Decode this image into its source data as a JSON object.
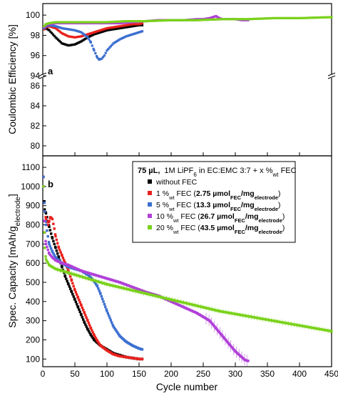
{
  "chart_data": [
    {
      "panel": "a",
      "type": "scatter",
      "ylabel": "Coulombic Efficiency [%]",
      "x_range": [
        0,
        450
      ],
      "y_ranges": [
        [
          94,
          101
        ],
        [
          79,
          87
        ]
      ],
      "y_axis_break": true,
      "y_ticks_upper": [
        "94",
        "96",
        "98",
        "100"
      ],
      "y_ticks_lower": [
        "80",
        "82",
        "84",
        "86"
      ],
      "series": [
        {
          "color": "#000000",
          "x": [
            2,
            5,
            10,
            20,
            30,
            40,
            50,
            60,
            70,
            80,
            90,
            100,
            110,
            120,
            130,
            140,
            150,
            155
          ],
          "y": [
            98.6,
            98.7,
            98.5,
            97.8,
            97.2,
            97.0,
            97.1,
            97.4,
            97.8,
            98.1,
            98.3,
            98.5,
            98.6,
            98.7,
            98.8,
            98.9,
            99.0,
            99.0
          ]
        },
        {
          "color": "#e8201c",
          "x": [
            2,
            5,
            10,
            20,
            30,
            40,
            50,
            60,
            70,
            80,
            90,
            100,
            110,
            120,
            130,
            140,
            150,
            155
          ],
          "y": [
            98.6,
            98.8,
            98.9,
            98.7,
            98.2,
            97.9,
            97.8,
            97.9,
            98.1,
            98.3,
            98.5,
            98.7,
            98.8,
            98.9,
            99.0,
            99.1,
            99.1,
            99.2
          ]
        },
        {
          "color": "#3b6fd0",
          "x": [
            2,
            5,
            10,
            20,
            30,
            40,
            50,
            60,
            70,
            75,
            80,
            85,
            88,
            92,
            96,
            100,
            110,
            120,
            130,
            140,
            150,
            155
          ],
          "y": [
            98.7,
            98.9,
            99.0,
            98.9,
            98.7,
            98.6,
            98.5,
            98.3,
            97.8,
            97.3,
            96.5,
            95.8,
            95.6,
            95.7,
            96.0,
            96.5,
            97.2,
            97.6,
            97.9,
            98.1,
            98.3,
            98.4
          ]
        },
        {
          "color": "#b040d8",
          "x": [
            2,
            5,
            10,
            20,
            40,
            60,
            80,
            100,
            120,
            140,
            160,
            180,
            200,
            220,
            240,
            250,
            260,
            265,
            270,
            275,
            280,
            290,
            300,
            310,
            320
          ],
          "y": [
            98.8,
            99.0,
            99.1,
            99.2,
            99.2,
            99.2,
            99.2,
            99.2,
            99.2,
            99.3,
            99.4,
            99.5,
            99.5,
            99.5,
            99.6,
            99.6,
            99.7,
            99.8,
            99.9,
            99.7,
            99.6,
            99.6,
            99.6,
            99.5,
            99.5
          ]
        },
        {
          "color": "#7ad21c",
          "x": [
            2,
            5,
            10,
            20,
            40,
            60,
            80,
            100,
            130,
            160,
            200,
            240,
            280,
            320,
            360,
            400,
            450
          ],
          "y": [
            98.9,
            99.1,
            99.2,
            99.3,
            99.3,
            99.3,
            99.3,
            99.3,
            99.4,
            99.4,
            99.5,
            99.5,
            99.6,
            99.6,
            99.7,
            99.7,
            99.8
          ]
        }
      ]
    },
    {
      "panel": "b",
      "type": "scatter",
      "xlabel": "Cycle number",
      "ylabel_main": "Spec. Capacity [mAh/g",
      "ylabel_sub": "electrode",
      "ylabel_close": "]",
      "x_range": [
        0,
        450
      ],
      "y_range": [
        60,
        1160
      ],
      "x_ticks": [
        "0",
        "50",
        "100",
        "150",
        "200",
        "250",
        "300",
        "350",
        "400",
        "450"
      ],
      "y_ticks": [
        "100",
        "200",
        "300",
        "400",
        "500",
        "600",
        "700",
        "800",
        "900",
        "1000",
        "1100"
      ],
      "legend": {
        "title": {
          "volume": "75 µL,",
          "salt_prefix": "1M LiPF",
          "salt_sub": "6",
          "solvent": " in EC:EMC 3:7 + x %",
          "wt_sub": "wt",
          "suffix": " FEC"
        },
        "entries": [
          {
            "color": "#000000",
            "label": "without FEC"
          },
          {
            "color": "#e8201c",
            "pct": "1 %",
            "wt": "wt",
            "fec": " FEC (",
            "amount": "2.75 µmol",
            "sub1": "FEC",
            "slash": "/mg",
            "sub2": "electrode",
            "close": ")"
          },
          {
            "color": "#3b6fd0",
            "pct": "5 %",
            "wt": "wt",
            "fec": " FEC (",
            "amount": "13.3 µmol",
            "sub1": "FEC",
            "slash": "/mg",
            "sub2": "electrode",
            "close": ")"
          },
          {
            "color": "#b040d8",
            "pct": "10 %",
            "wt": "wt",
            "fec": " FEC (",
            "amount": "26.7 µmol",
            "sub1": "FEC",
            "slash": "/mg",
            "sub2": "electrode",
            "close": ")"
          },
          {
            "color": "#7ad21c",
            "pct": "20 %",
            "wt": "wt",
            "fec": " FEC (",
            "amount": "43.5 µmol",
            "sub1": "FEC",
            "slash": "/mg",
            "sub2": "electrode",
            "close": ")"
          }
        ]
      },
      "series": [
        {
          "color": "#000000",
          "x": [
            1,
            3,
            5,
            8,
            10,
            15,
            20,
            25,
            30,
            35,
            40,
            45,
            50,
            55,
            60,
            65,
            70,
            75,
            80,
            90,
            100,
            110,
            120,
            130,
            140,
            150,
            155
          ],
          "y": [
            1050,
            880,
            860,
            820,
            790,
            730,
            680,
            630,
            580,
            530,
            490,
            450,
            410,
            370,
            330,
            290,
            255,
            225,
            200,
            170,
            150,
            130,
            120,
            110,
            105,
            100,
            100
          ]
        },
        {
          "color": "#e8201c",
          "x": [
            1,
            3,
            5,
            8,
            10,
            12,
            15,
            18,
            20,
            25,
            30,
            35,
            40,
            45,
            50,
            55,
            60,
            65,
            70,
            75,
            80,
            85,
            90,
            100,
            110,
            120,
            130,
            140,
            150,
            155
          ],
          "y": [
            1050,
            870,
            830,
            800,
            820,
            840,
            830,
            780,
            740,
            680,
            640,
            600,
            560,
            510,
            460,
            420,
            380,
            340,
            300,
            260,
            225,
            195,
            170,
            145,
            125,
            115,
            110,
            105,
            100,
            100
          ]
        },
        {
          "color": "#3b6fd0",
          "x": [
            1,
            3,
            5,
            10,
            15,
            20,
            30,
            40,
            50,
            60,
            70,
            75,
            80,
            85,
            90,
            100,
            110,
            120,
            130,
            140,
            150,
            155
          ],
          "y": [
            1050,
            870,
            800,
            700,
            660,
            630,
            600,
            580,
            570,
            560,
            540,
            525,
            505,
            480,
            440,
            350,
            270,
            220,
            190,
            170,
            155,
            150
          ]
        },
        {
          "color": "#b040d8",
          "x": [
            1,
            3,
            5,
            10,
            15,
            20,
            30,
            40,
            50,
            60,
            80,
            100,
            120,
            140,
            160,
            180,
            200,
            220,
            240,
            250,
            260,
            270,
            280,
            290,
            300,
            310,
            315,
            320
          ],
          "y": [
            1000,
            760,
            700,
            650,
            630,
            615,
            600,
            590,
            575,
            560,
            540,
            520,
            500,
            475,
            450,
            430,
            400,
            370,
            340,
            320,
            300,
            260,
            220,
            180,
            140,
            110,
            95,
            90
          ]
        },
        {
          "color": "#7ad21c",
          "x": [
            1,
            3,
            5,
            10,
            15,
            20,
            30,
            40,
            50,
            60,
            80,
            100,
            125,
            150,
            175,
            200,
            225,
            250,
            275,
            300,
            325,
            350,
            375,
            400,
            425,
            450
          ],
          "y": [
            1000,
            680,
            620,
            590,
            580,
            570,
            560,
            550,
            540,
            530,
            510,
            490,
            470,
            450,
            430,
            410,
            390,
            370,
            350,
            335,
            320,
            305,
            290,
            275,
            260,
            245
          ]
        }
      ]
    }
  ]
}
